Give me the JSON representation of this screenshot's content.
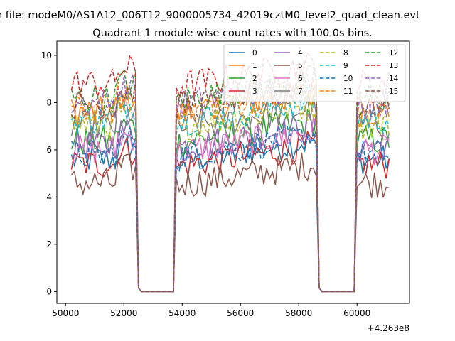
{
  "suptitle": "n file: modeM0/AS1A12_006T12_9000005734_42019cztM0_level2_quad_clean.evt",
  "title": "Quadrant 1 module wise count rates with 100.0s bins.",
  "offset_label": "+4.263e8",
  "colors": {
    "c0": "#1f77b4",
    "c1": "#ff7f0e",
    "c2": "#2ca02c",
    "c3": "#d62728",
    "c4": "#9467bd",
    "c5": "#8c564b",
    "c6": "#e377c2",
    "c7": "#7f7f7f",
    "c8": "#bcbd22",
    "c9": "#17becf"
  },
  "chart_data": {
    "type": "line",
    "title": "Quadrant 1 module wise count rates with 100.0s bins.",
    "xlabel": "",
    "ylabel": "",
    "x_offset": 426300000,
    "xlim": [
      49700,
      61800
    ],
    "ylim": [
      -0.5,
      10.6
    ],
    "xticks": [
      50000,
      52000,
      54000,
      56000,
      58000,
      60000
    ],
    "yticks": [
      0,
      2,
      4,
      6,
      8,
      10
    ],
    "grid": false,
    "legend_position": "top-right",
    "legend_columns": 4,
    "x_segments": [
      {
        "from": 50200,
        "to": 52400,
        "kind": "data"
      },
      {
        "from": 52500,
        "to": 53700,
        "kind": "zero"
      },
      {
        "from": 53800,
        "to": 58600,
        "kind": "data"
      },
      {
        "from": 58700,
        "to": 59900,
        "kind": "zero"
      },
      {
        "from": 60000,
        "to": 61100,
        "kind": "data"
      }
    ],
    "series": [
      {
        "name": "0",
        "level": 5.6,
        "dash": false
      },
      {
        "name": "1",
        "level": 7.6,
        "dash": false
      },
      {
        "name": "2",
        "level": 6.4,
        "dash": false
      },
      {
        "name": "3",
        "level": 5.4,
        "dash": false
      },
      {
        "name": "4",
        "level": 6.2,
        "dash": false
      },
      {
        "name": "5",
        "level": 4.6,
        "dash": false
      },
      {
        "name": "6",
        "level": 6.0,
        "dash": false
      },
      {
        "name": "7",
        "level": 7.0,
        "dash": false
      },
      {
        "name": "8",
        "level": 7.1,
        "dash": true
      },
      {
        "name": "9",
        "level": 7.3,
        "dash": true
      },
      {
        "name": "10",
        "level": 5.8,
        "dash": true
      },
      {
        "name": "11",
        "level": 7.7,
        "dash": true
      },
      {
        "name": "12",
        "level": 8.2,
        "dash": true
      },
      {
        "name": "13",
        "level": 8.8,
        "dash": true
      },
      {
        "name": "14",
        "level": 8.0,
        "dash": true
      },
      {
        "name": "15",
        "level": 7.9,
        "dash": true
      }
    ]
  }
}
